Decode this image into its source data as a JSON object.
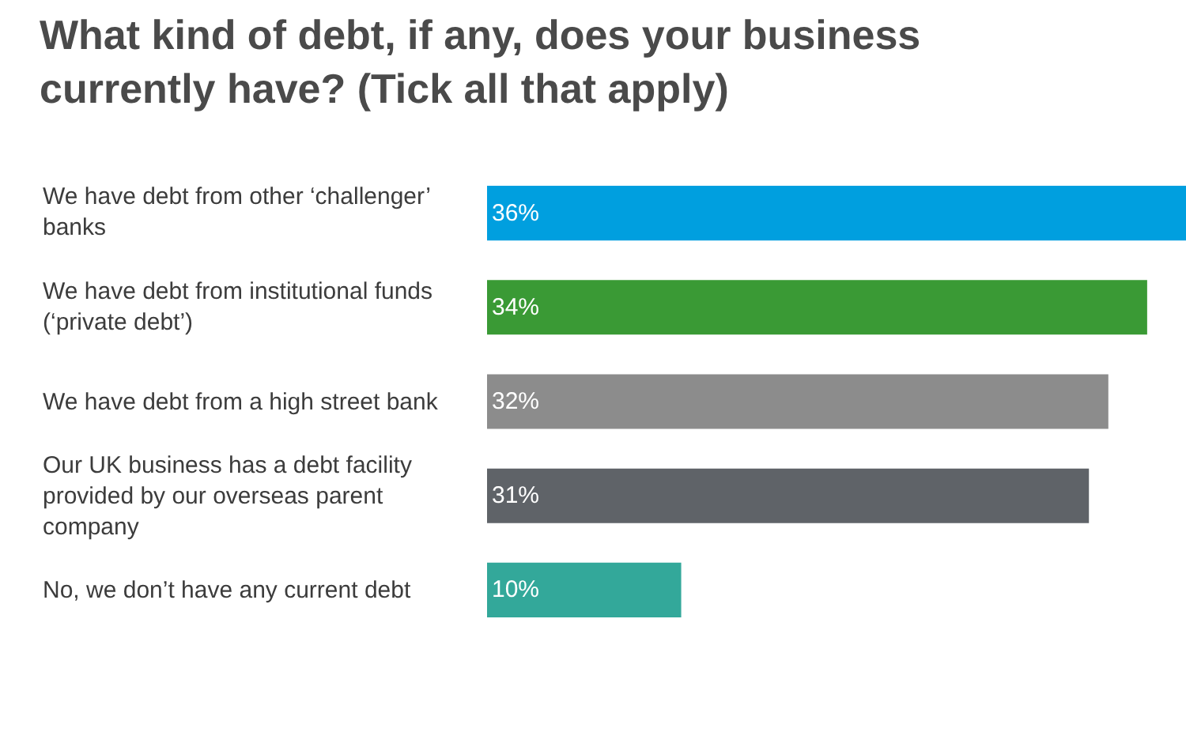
{
  "chart_data": {
    "type": "bar",
    "orientation": "horizontal",
    "title": "What kind of debt, if any, does your business currently have? (Tick all that apply)",
    "categories": [
      "We have debt from other ‘challenger’ banks",
      "We have debt from institutional funds (‘private debt’)",
      "We have debt from a high street bank",
      "Our UK business has a debt facility provided by our overseas parent company",
      "No, we don’t have any current debt"
    ],
    "values": [
      36,
      34,
      32,
      31,
      10
    ],
    "colors": [
      "#009fdf",
      "#3a9a35",
      "#8c8c8c",
      "#5f6368",
      "#33a89a"
    ],
    "value_labels": [
      "36%",
      "34%",
      "32%",
      "31%",
      "10%"
    ]
  }
}
